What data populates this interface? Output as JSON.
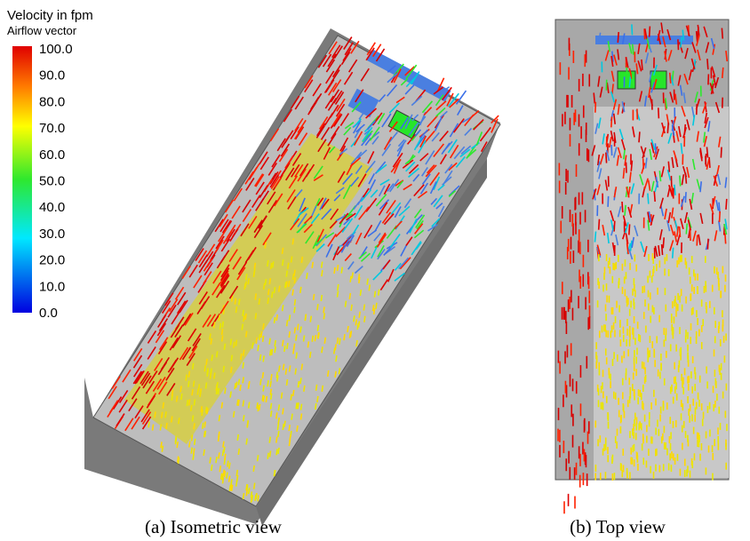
{
  "legend": {
    "title": "Velocity in fpm",
    "subtitle": "Airflow vector",
    "ticks": [
      "100.0",
      "90.0",
      "80.0",
      "70.0",
      "60.0",
      "50.0",
      "40.0",
      "30.0",
      "20.0",
      "10.0",
      "0.0"
    ]
  },
  "captions": [
    "(a) Isometric view",
    "(b) Top view"
  ]
}
